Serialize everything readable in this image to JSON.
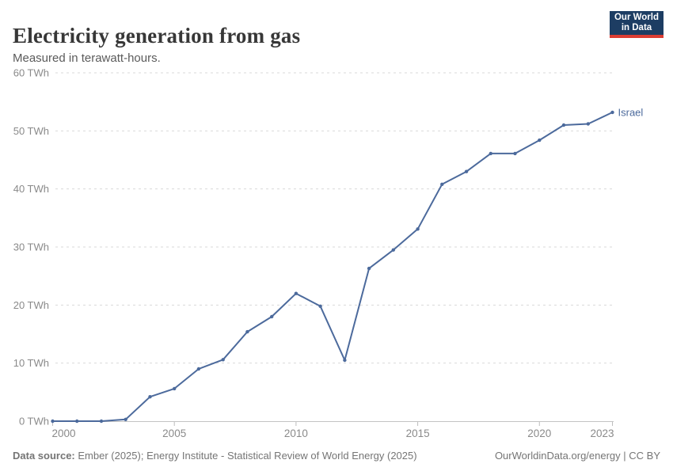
{
  "header": {
    "title": "Electricity generation from gas",
    "subtitle": "Measured in terawatt-hours.",
    "logo": {
      "line1": "Our World",
      "line2": "in Data"
    }
  },
  "chart_data": {
    "type": "line",
    "title": "Electricity generation from gas",
    "unit": "TWh",
    "xlim": [
      2000,
      2023
    ],
    "ylim": [
      0,
      60
    ],
    "grid": "horizontal-dashed",
    "legend_position": "end-of-line-label",
    "x_ticks": [
      2000,
      2005,
      2010,
      2015,
      2020,
      2023
    ],
    "x_tick_labels": [
      "2000",
      "2005",
      "2010",
      "2015",
      "2020",
      "2023"
    ],
    "y_ticks": [
      0,
      10,
      20,
      30,
      40,
      50,
      60
    ],
    "y_tick_labels": [
      "0 TWh",
      "10 TWh",
      "20 TWh",
      "30 TWh",
      "40 TWh",
      "50 TWh",
      "60 TWh"
    ],
    "series": [
      {
        "name": "Israel",
        "color": "#4c6a9c",
        "x": [
          2000,
          2001,
          2002,
          2003,
          2004,
          2005,
          2006,
          2007,
          2008,
          2009,
          2010,
          2011,
          2012,
          2013,
          2014,
          2015,
          2016,
          2017,
          2018,
          2019,
          2020,
          2021,
          2022,
          2023
        ],
        "values": [
          0,
          0,
          0,
          0.3,
          4.2,
          5.6,
          9.0,
          10.6,
          15.4,
          18.0,
          22.0,
          19.8,
          10.5,
          26.3,
          29.5,
          33.1,
          40.8,
          43.0,
          46.1,
          46.1,
          48.4,
          51.0,
          51.2,
          53.2
        ]
      }
    ]
  },
  "footer": {
    "source_label": "Data source:",
    "source_text": " Ember (2025); Energy Institute - Statistical Review of World Energy (2025)",
    "credit": "OurWorldinData.org/energy | CC BY"
  },
  "colors": {
    "series_blue": "#4c6a9c",
    "gridline": "#dadada",
    "axis_line": "#c4c4c4",
    "tick_mark": "#bdbdbd",
    "tick_text": "#8a8a8a",
    "logo_bg": "#1d3d63",
    "logo_red": "#dc3d33"
  }
}
